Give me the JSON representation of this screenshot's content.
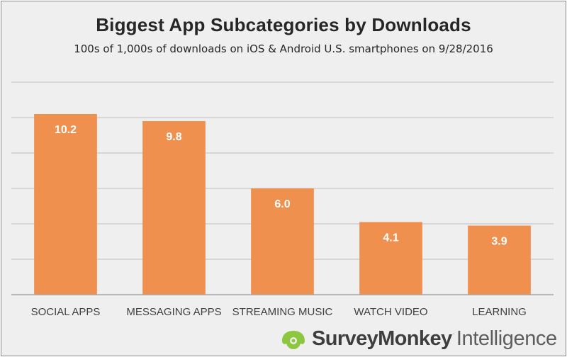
{
  "chart_data": {
    "type": "bar",
    "title": "Biggest App Subcategories by Downloads",
    "subtitle": "100s of 1,000s of downloads on iOS & Android U.S. smartphones on 9/28/2016",
    "categories": [
      "SOCIAL APPS",
      "MESSAGING APPS",
      "STREAMING MUSIC",
      "WATCH VIDEO",
      "LEARNING"
    ],
    "values": [
      10.2,
      9.8,
      6.0,
      4.1,
      3.9
    ],
    "value_labels": [
      "10.2",
      "9.8",
      "6.0",
      "4.1",
      "3.9"
    ],
    "ylim": [
      0,
      12
    ],
    "ytick_step": 2,
    "grid": true,
    "bar_color": "#f0904f",
    "grid_color": "#bfbfbf"
  },
  "logo": {
    "brand": "SurveyMonkey",
    "mark": "·",
    "product": "Intelligence",
    "icon": "surveymonkey-logo-icon",
    "icon_color": "#8dc63f"
  }
}
